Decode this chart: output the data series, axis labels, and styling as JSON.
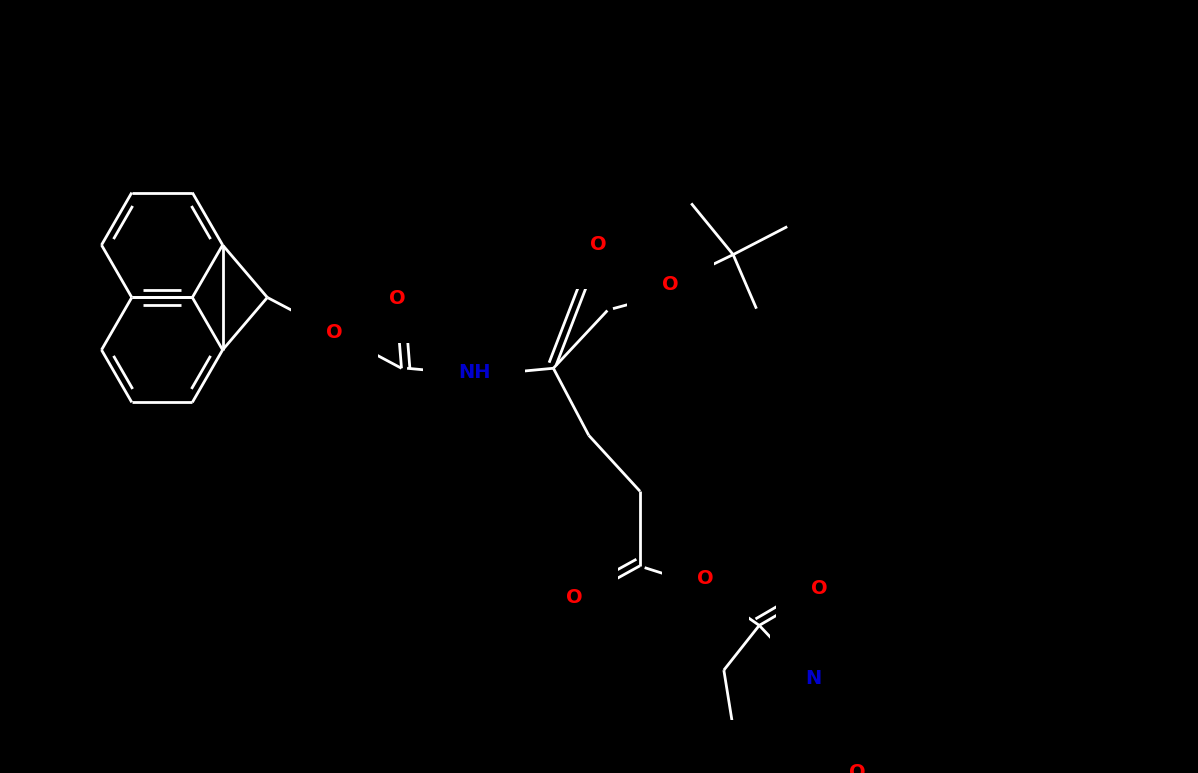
{
  "bg": "#000000",
  "bond": "#ffffff",
  "O": "#ff0000",
  "N": "#0000cd",
  "figsize": [
    11.98,
    7.73
  ],
  "dpi": 100
}
